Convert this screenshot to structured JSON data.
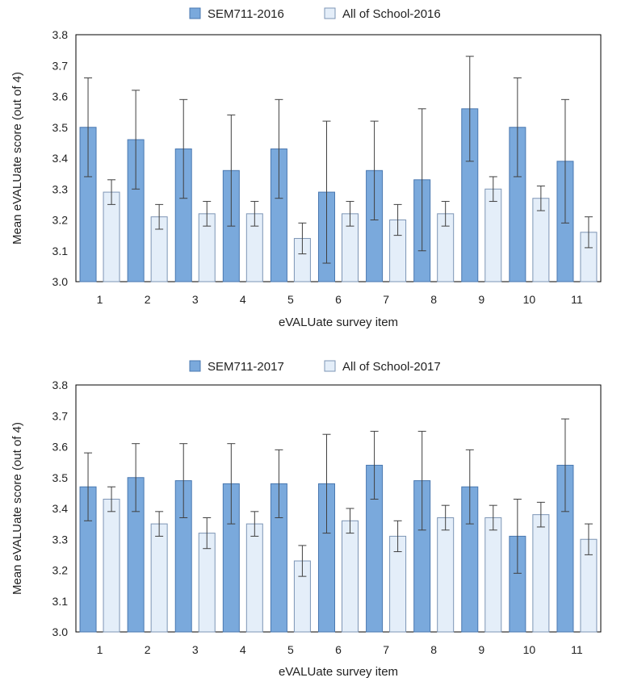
{
  "colors": {
    "primary_fill": "#7aa9dc",
    "primary_stroke": "#4a78b0",
    "secondary_fill": "#e4eef9",
    "secondary_stroke": "#7d95b5",
    "error": "#404040",
    "frame": "#000000"
  },
  "chart_data": [
    {
      "type": "bar",
      "xlabel": "eVALUate survey item",
      "ylabel": "Mean eVALUate score (out of 4)",
      "ylim": [
        3.0,
        3.8
      ],
      "yticks": [
        "3.0",
        "3.1",
        "3.2",
        "3.3",
        "3.4",
        "3.5",
        "3.6",
        "3.7",
        "3.8"
      ],
      "legend_position": "top",
      "categories": [
        "1",
        "2",
        "3",
        "4",
        "5",
        "6",
        "7",
        "8",
        "9",
        "10",
        "11"
      ],
      "series": [
        {
          "name": "SEM711-2016",
          "values": [
            3.5,
            3.46,
            3.43,
            3.36,
            3.43,
            3.29,
            3.36,
            3.33,
            3.56,
            3.5,
            3.39
          ],
          "error": [
            0.16,
            0.16,
            0.16,
            0.18,
            0.16,
            0.23,
            0.16,
            0.23,
            0.17,
            0.16,
            0.2
          ]
        },
        {
          "name": "All of School-2016",
          "values": [
            3.29,
            3.21,
            3.22,
            3.22,
            3.14,
            3.22,
            3.2,
            3.22,
            3.3,
            3.27,
            3.16
          ],
          "error": [
            0.04,
            0.04,
            0.04,
            0.04,
            0.05,
            0.04,
            0.05,
            0.04,
            0.04,
            0.04,
            0.05
          ]
        }
      ]
    },
    {
      "type": "bar",
      "xlabel": "eVALUate survey item",
      "ylabel": "Mean eVALUate score (out of 4)",
      "ylim": [
        3.0,
        3.8
      ],
      "yticks": [
        "3.0",
        "3.1",
        "3.2",
        "3.3",
        "3.4",
        "3.5",
        "3.6",
        "3.7",
        "3.8"
      ],
      "legend_position": "top",
      "categories": [
        "1",
        "2",
        "3",
        "4",
        "5",
        "6",
        "7",
        "8",
        "9",
        "10",
        "11"
      ],
      "series": [
        {
          "name": "SEM711-2017",
          "values": [
            3.47,
            3.5,
            3.49,
            3.48,
            3.48,
            3.48,
            3.54,
            3.49,
            3.47,
            3.31,
            3.54
          ],
          "error": [
            0.11,
            0.11,
            0.12,
            0.13,
            0.11,
            0.16,
            0.11,
            0.16,
            0.12,
            0.12,
            0.15
          ]
        },
        {
          "name": "All of School-2017",
          "values": [
            3.43,
            3.35,
            3.32,
            3.35,
            3.23,
            3.36,
            3.31,
            3.37,
            3.37,
            3.38,
            3.3
          ],
          "error": [
            0.04,
            0.04,
            0.05,
            0.04,
            0.05,
            0.04,
            0.05,
            0.04,
            0.04,
            0.04,
            0.05
          ]
        }
      ]
    }
  ]
}
